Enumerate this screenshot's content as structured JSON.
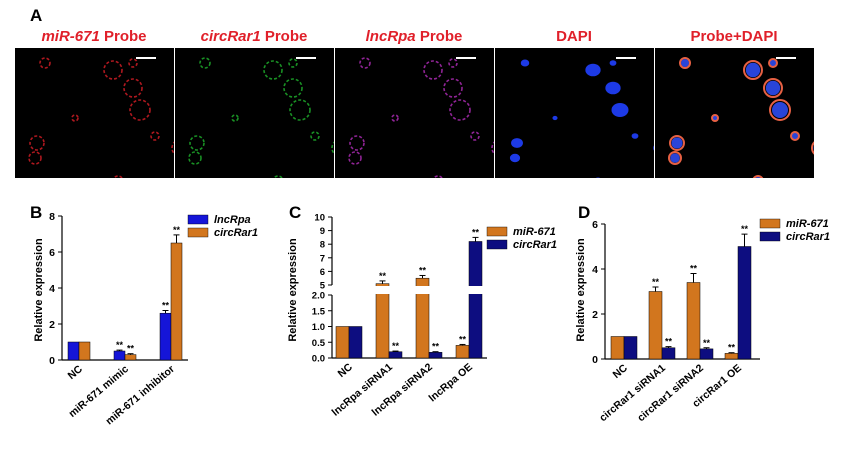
{
  "panels": {
    "a": "A",
    "b": "B",
    "c": "C",
    "d": "D"
  },
  "panel_a": {
    "titles": [
      {
        "italic": "miR-671",
        "rest": " Probe",
        "color": "#e0202a"
      },
      {
        "italic": "circRar1",
        "rest": " Probe",
        "color": "#e0202a"
      },
      {
        "italic": "lncRpa",
        "rest": " Probe",
        "color": "#e0202a"
      },
      {
        "italic": "",
        "rest": "DAPI",
        "color": "#e0202a"
      },
      {
        "italic": "",
        "rest": "Probe+DAPI",
        "color": "#e0202a"
      }
    ],
    "channel_colors": [
      "#e8202a",
      "#22c030",
      "#c030c8",
      "#2040ff",
      "merge"
    ]
  },
  "sig_mark": "**",
  "chart_data": [
    {
      "type": "bar",
      "panel": "B",
      "ylabel": "Relative expression",
      "ylim": [
        0,
        8
      ],
      "yticks": [
        "0",
        "2",
        "4",
        "6",
        "8"
      ],
      "categories": [
        "NC",
        "miR-671 mimic",
        "miR-671 inhibitor"
      ],
      "series": [
        {
          "name": "lncRpa",
          "color": "#1515d8",
          "values": [
            1.0,
            0.5,
            2.6
          ],
          "errors": [
            0,
            0.05,
            0.15
          ],
          "sig": [
            false,
            true,
            true
          ]
        },
        {
          "name": "circRar1",
          "color": "#d2761e",
          "values": [
            1.0,
            0.3,
            6.5
          ],
          "errors": [
            0,
            0.05,
            0.45
          ],
          "sig": [
            false,
            true,
            true
          ]
        }
      ],
      "legend": "top-right"
    },
    {
      "type": "bar",
      "panel": "C",
      "ylabel": "Relative expression",
      "axis_break": true,
      "ylim_lower": [
        0,
        2.0
      ],
      "ylim_upper": [
        5,
        10
      ],
      "yticks_lower": [
        "0.0",
        "0.5",
        "1.0",
        "1.5",
        "2.0"
      ],
      "yticks_upper": [
        "5",
        "6",
        "7",
        "8",
        "9",
        "10"
      ],
      "categories": [
        "NC",
        "lncRpa siRNA1",
        "lncRpa siRNA2",
        "lncRpa OE"
      ],
      "series": [
        {
          "name": "miR-671",
          "color": "#d2761e",
          "values": [
            1.0,
            5.1,
            5.5,
            0.4
          ],
          "errors": [
            0,
            0.2,
            0.2,
            0.03
          ],
          "sig": [
            false,
            true,
            true,
            true
          ]
        },
        {
          "name": "circRar1",
          "color": "#0d0d80",
          "values": [
            1.0,
            0.2,
            0.18,
            8.2
          ],
          "errors": [
            0,
            0.02,
            0.02,
            0.3
          ],
          "sig": [
            false,
            true,
            true,
            true
          ]
        }
      ],
      "legend": "top-right"
    },
    {
      "type": "bar",
      "panel": "D",
      "ylabel": "Relative expression",
      "ylim": [
        0,
        6
      ],
      "yticks": [
        "0",
        "2",
        "4",
        "6"
      ],
      "categories": [
        "NC",
        "circRar1 siRNA1",
        "circRar1 siRNA2",
        "circRar1 OE"
      ],
      "series": [
        {
          "name": "miR-671",
          "color": "#d2761e",
          "values": [
            1.0,
            3.0,
            3.4,
            0.25
          ],
          "errors": [
            0,
            0.2,
            0.4,
            0.03
          ],
          "sig": [
            false,
            true,
            true,
            true
          ]
        },
        {
          "name": "circRar1",
          "color": "#0d0d80",
          "values": [
            1.0,
            0.5,
            0.45,
            5.0
          ],
          "errors": [
            0,
            0.05,
            0.05,
            0.55
          ],
          "sig": [
            false,
            true,
            true,
            true
          ]
        }
      ],
      "legend": "top-right"
    }
  ]
}
